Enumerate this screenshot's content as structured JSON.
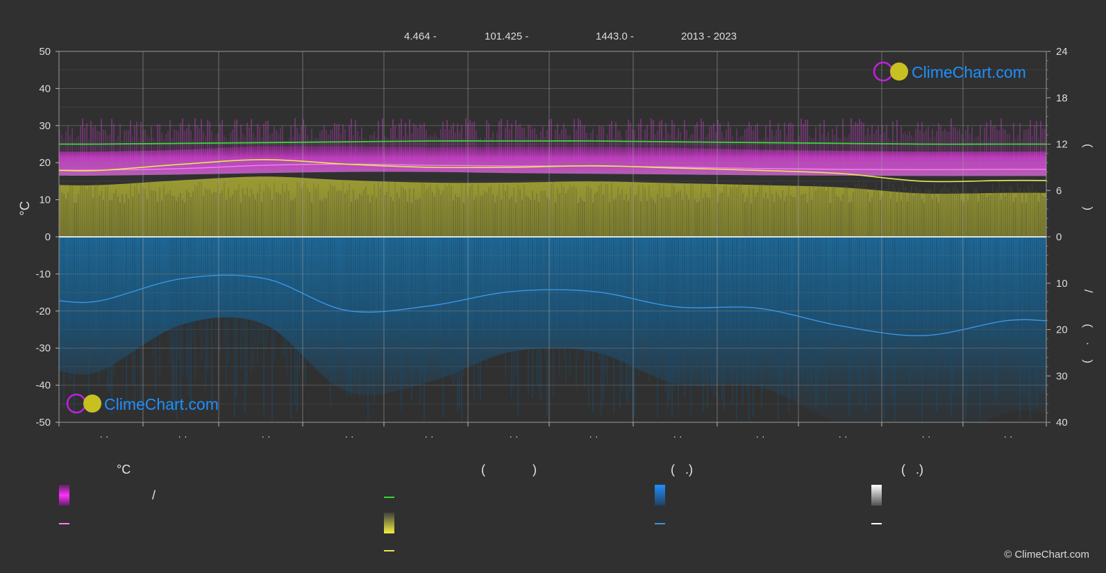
{
  "header": {
    "lat": "4.464 -",
    "lon": "101.425 -",
    "elev": "1443.0 -",
    "years": "2013 - 2023"
  },
  "logo_text": "ClimeChart.com",
  "copyright": "© ClimeChart.com",
  "colors": {
    "background": "#303030",
    "temperature_band": "#c81ec8",
    "daylight": "#39d639",
    "sunshine_band": "#b4b432",
    "sunshine_line": "#e8e850",
    "precip_band": "#1e6ea0",
    "precip_line": "#3a96e6",
    "temp_mean": "#ff7aff",
    "logo_blue": "#1e90ff"
  },
  "legend": {
    "col1_header": "°C",
    "col1_row1_sep": "/",
    "col2_header_open": "(",
    "col2_header_close": ")",
    "col3_header": "(   .)",
    "col4_header": "(   .)"
  },
  "chart_data": {
    "type": "area",
    "x_ticks": [
      "· ·",
      "· ·",
      "· ·",
      "· ·",
      "· ·",
      "· ·",
      "· ·",
      "· ·",
      "· ·",
      "· ·",
      "· ·",
      "· ·"
    ],
    "ylabel_left": "°C",
    "y_left_ticks": [
      50,
      40,
      30,
      20,
      10,
      0,
      -10,
      -20,
      -30,
      -40,
      -50
    ],
    "ylim_left": [
      -50,
      50
    ],
    "y_right_top_ticks": [
      24,
      18,
      12,
      6,
      0
    ],
    "y_right_top_lim": [
      0,
      24
    ],
    "y_right_bottom_ticks": [
      10,
      20,
      30,
      40
    ],
    "y_right_bottom_lim": [
      0,
      40
    ],
    "right_top_label": "(   )",
    "right_bottom_label": "/   (·)",
    "grid": true,
    "months": 12,
    "series": [
      {
        "key": "daylight_hours",
        "axis": "right_top",
        "values": [
          12.0,
          12.1,
          12.2,
          12.3,
          12.4,
          12.4,
          12.4,
          12.3,
          12.2,
          12.1,
          12.0,
          12.0
        ]
      },
      {
        "key": "sunshine_hours",
        "axis": "right_top",
        "values": [
          8.6,
          9.4,
          10.0,
          9.4,
          9.0,
          9.0,
          9.2,
          8.9,
          8.6,
          8.2,
          7.2,
          7.3
        ]
      },
      {
        "key": "temp_mean",
        "axis": "left",
        "values": [
          18.0,
          18.4,
          19.3,
          19.6,
          19.3,
          19.1,
          19.1,
          18.8,
          18.4,
          18.2,
          18.1,
          18.2
        ]
      },
      {
        "key": "temp_max_band",
        "axis": "left",
        "values": [
          23.0,
          23.5,
          24.5,
          24.5,
          24.2,
          24.3,
          24.3,
          24.0,
          23.5,
          23.2,
          23.0,
          23.0
        ]
      },
      {
        "key": "temp_min_band",
        "axis": "left",
        "values": [
          16.5,
          16.8,
          17.2,
          17.5,
          17.5,
          17.2,
          17.0,
          16.8,
          16.6,
          16.5,
          16.4,
          16.4
        ]
      },
      {
        "key": "precipitation",
        "axis": "right_bottom",
        "values": [
          13.8,
          9.0,
          9.0,
          15.9,
          14.9,
          11.8,
          11.8,
          15.1,
          15.4,
          19.2,
          21.3,
          18.1
        ]
      }
    ]
  }
}
